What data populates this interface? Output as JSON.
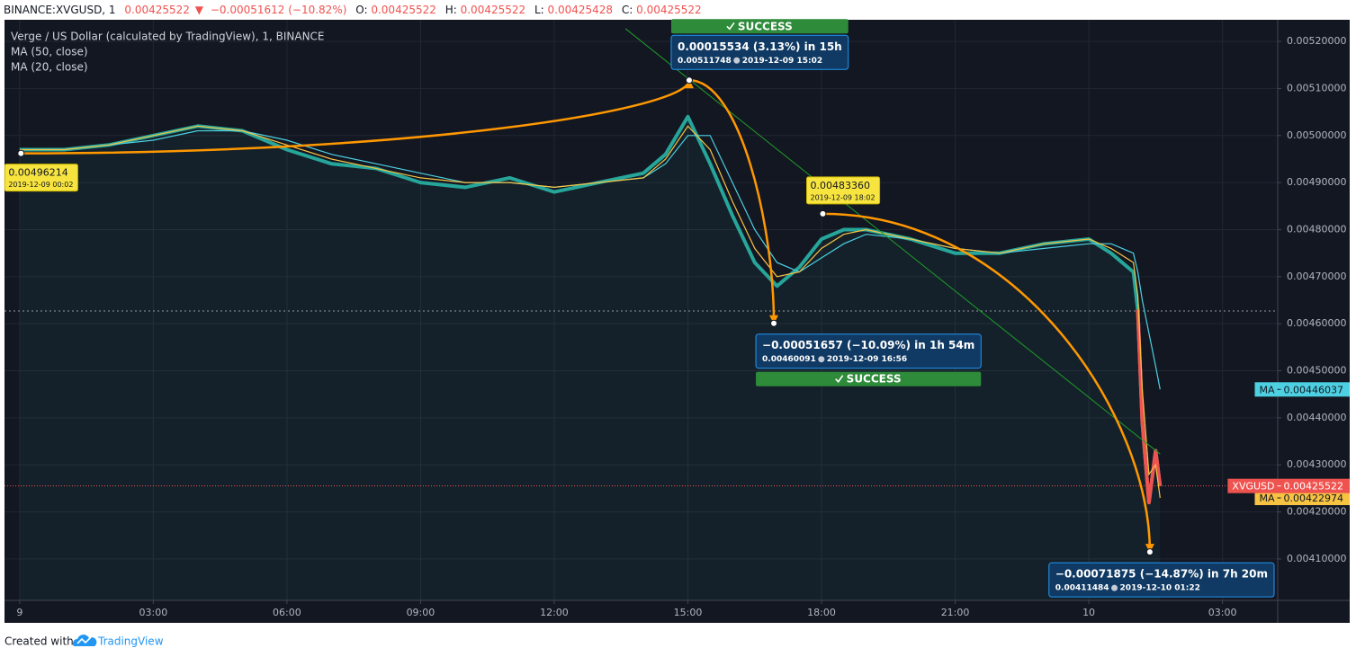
{
  "header": {
    "symbol": "BINANCE:XVGUSD, 1",
    "last": "0.00425522",
    "arrow": "▼",
    "change": "−0.00051612 (−10.82%)",
    "o_label": "O:",
    "o": "0.00425522",
    "h_label": "H:",
    "h": "0.00425522",
    "l_label": "L:",
    "l": "0.00425428",
    "c_label": "C:",
    "c": "0.00425522"
  },
  "footer": {
    "text": "Created with",
    "brand": "TradingView"
  },
  "chart_data": {
    "type": "line",
    "title": "Verge / US Dollar (calculated by TradingView), 1, BINANCE",
    "x": [
      0,
      1,
      2,
      3,
      4,
      5,
      6,
      7,
      8,
      9,
      10,
      11,
      12,
      13,
      14,
      14.5,
      15,
      15.5,
      16,
      16.5,
      17,
      17.5,
      18,
      18.5,
      19,
      20,
      21,
      22,
      23,
      24,
      24.5,
      25,
      25.1,
      25.2,
      25.35,
      25.5,
      25.6
    ],
    "xlim": [
      -0.34,
      28.24
    ],
    "xticks": [
      {
        "value": 0,
        "label": "9"
      },
      {
        "value": 3,
        "label": "03:00"
      },
      {
        "value": 6,
        "label": "06:00"
      },
      {
        "value": 9,
        "label": "09:00"
      },
      {
        "value": 12,
        "label": "12:00"
      },
      {
        "value": 15,
        "label": "15:00"
      },
      {
        "value": 18,
        "label": "18:00"
      },
      {
        "value": 21,
        "label": "21:00"
      },
      {
        "value": 24,
        "label": "10"
      },
      {
        "value": 27,
        "label": "03:00"
      }
    ],
    "ylim": [
      0.004012,
      0.005246
    ],
    "yticks": [
      {
        "value": 0.0041,
        "label": "0.00410000"
      },
      {
        "value": 0.0042,
        "label": "0.00420000"
      },
      {
        "value": 0.0043,
        "label": "0.00430000"
      },
      {
        "value": 0.0044,
        "label": "0.00440000"
      },
      {
        "value": 0.0045,
        "label": "0.00450000"
      },
      {
        "value": 0.0046,
        "label": "0.00460000"
      },
      {
        "value": 0.0047,
        "label": "0.00470000"
      },
      {
        "value": 0.0048,
        "label": "0.00480000"
      },
      {
        "value": 0.0049,
        "label": "0.00490000"
      },
      {
        "value": 0.005,
        "label": "0.00500000"
      },
      {
        "value": 0.0051,
        "label": "0.00510000"
      },
      {
        "value": 0.0052,
        "label": "0.00520000"
      }
    ],
    "grid": true,
    "legend": "top-left",
    "series": [
      {
        "name": "XVGUSD",
        "color": "#26a69a",
        "values": [
          0.00497,
          0.00497,
          0.00498,
          0.005,
          0.00502,
          0.00501,
          0.00497,
          0.00494,
          0.00493,
          0.0049,
          0.00489,
          0.00491,
          0.00488,
          0.0049,
          0.00492,
          0.00496,
          0.00504,
          0.00494,
          0.00483,
          0.00473,
          0.00468,
          0.00472,
          0.00478,
          0.0048,
          0.0048,
          0.00478,
          0.00475,
          0.00475,
          0.00477,
          0.00478,
          0.00475,
          0.00471,
          0.00463,
          0.00439,
          0.00422,
          0.00433,
          0.00425522
        ]
      },
      {
        "name": "MA (50, close)",
        "tag": "MA",
        "color": "#4dd0e1",
        "values": [
          0.00497,
          0.00497,
          0.00498,
          0.00499,
          0.00501,
          0.00501,
          0.00499,
          0.00496,
          0.00494,
          0.00492,
          0.0049,
          0.0049,
          0.00489,
          0.0049,
          0.00491,
          0.00494,
          0.005,
          0.005,
          0.0049,
          0.0048,
          0.00473,
          0.00471,
          0.00474,
          0.00477,
          0.00479,
          0.00478,
          0.00476,
          0.00475,
          0.00476,
          0.00477,
          0.00477,
          0.00475,
          0.00471,
          0.00465,
          0.00458,
          0.00451,
          0.00446037
        ]
      },
      {
        "name": "MA (20, close)",
        "tag": "MA",
        "color": "#f6c343",
        "values": [
          0.00497,
          0.00497,
          0.00498,
          0.005,
          0.00502,
          0.00501,
          0.00498,
          0.00495,
          0.00493,
          0.00491,
          0.0049,
          0.0049,
          0.00489,
          0.0049,
          0.00491,
          0.00495,
          0.00502,
          0.00497,
          0.00486,
          0.00476,
          0.0047,
          0.00471,
          0.00476,
          0.00479,
          0.0048,
          0.00478,
          0.00476,
          0.00475,
          0.00477,
          0.00478,
          0.00476,
          0.00473,
          0.00466,
          0.00446,
          0.00428,
          0.0043,
          0.00422974
        ]
      }
    ],
    "down_color": "#ef5350",
    "level_line": 0.004627,
    "trend_line": {
      "x": [
        13.6,
        25.6
      ],
      "values": [
        0.005227,
        0.004323
      ],
      "color": "#1e9e28"
    },
    "points": [
      {
        "x": 0.03,
        "value": 0.00496214,
        "date": "2019-12-09 00:02"
      },
      {
        "x": 18.03,
        "value": 0.0048336,
        "value_label": "0.00483360",
        "date": "2019-12-09 18:02"
      }
    ],
    "projections": [
      {
        "change": "0.00015534 (3.13%) in 15h",
        "x": 15.03,
        "value": 0.00511748,
        "date": "2019-12-09  15:02",
        "status": "SUCCESS"
      },
      {
        "change": "−0.00051657 (−10.09%) in 1h 54m",
        "x": 16.93,
        "value": 0.00460091,
        "date": "2019-12-09  16:56",
        "status": "SUCCESS"
      },
      {
        "change": "−0.00071875 (−14.87%) in 7h 20m",
        "x": 25.37,
        "value": 0.00411484,
        "date": "2019-12-10  01:22"
      }
    ]
  }
}
